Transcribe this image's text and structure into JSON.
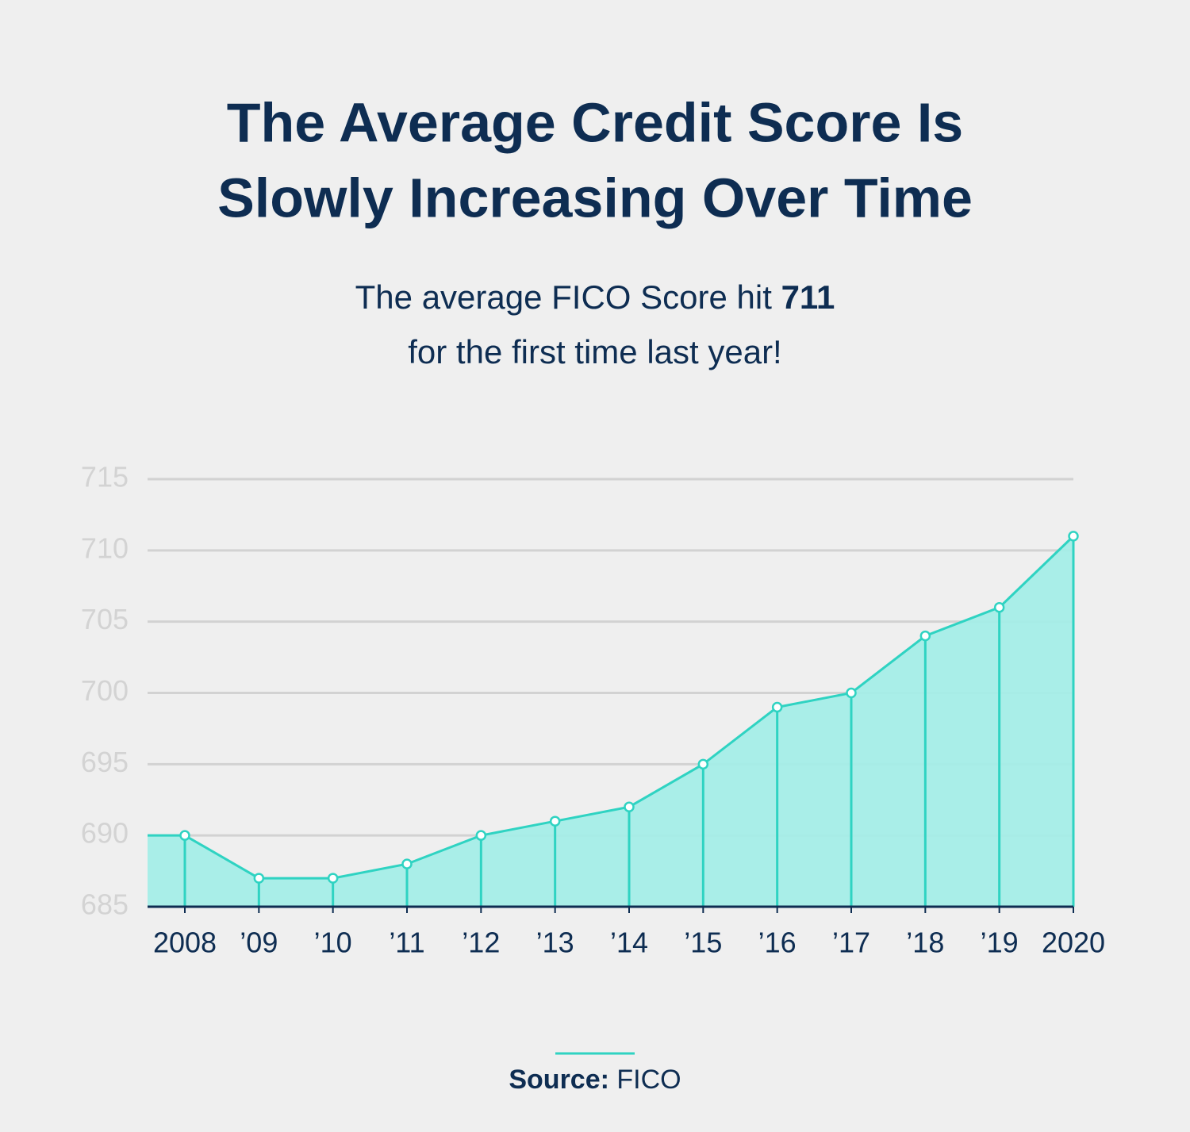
{
  "chart_data": {
    "type": "area",
    "title": [
      "The Average Credit Score Is",
      "Slowly Increasing Over Time"
    ],
    "subtitle": {
      "line1": "The average FICO Score hit",
      "highlight": "711",
      "line2": "for the first time last year!"
    },
    "categories": [
      "2008",
      "’09",
      "’10",
      "’11",
      "’12",
      "’13",
      "’14",
      "’15",
      "’16",
      "’17",
      "’18",
      "’19",
      "2020"
    ],
    "values": [
      690,
      687,
      687,
      688,
      690,
      691,
      692,
      695,
      699,
      700,
      704,
      706,
      711
    ],
    "color": "#2fd3c2",
    "fill": "#a4ede7",
    "ylim": [
      685,
      715
    ],
    "yticks": [
      685,
      690,
      695,
      700,
      705,
      710,
      715
    ],
    "grid": true,
    "source": {
      "label": "Source:",
      "text": "FICO"
    }
  }
}
